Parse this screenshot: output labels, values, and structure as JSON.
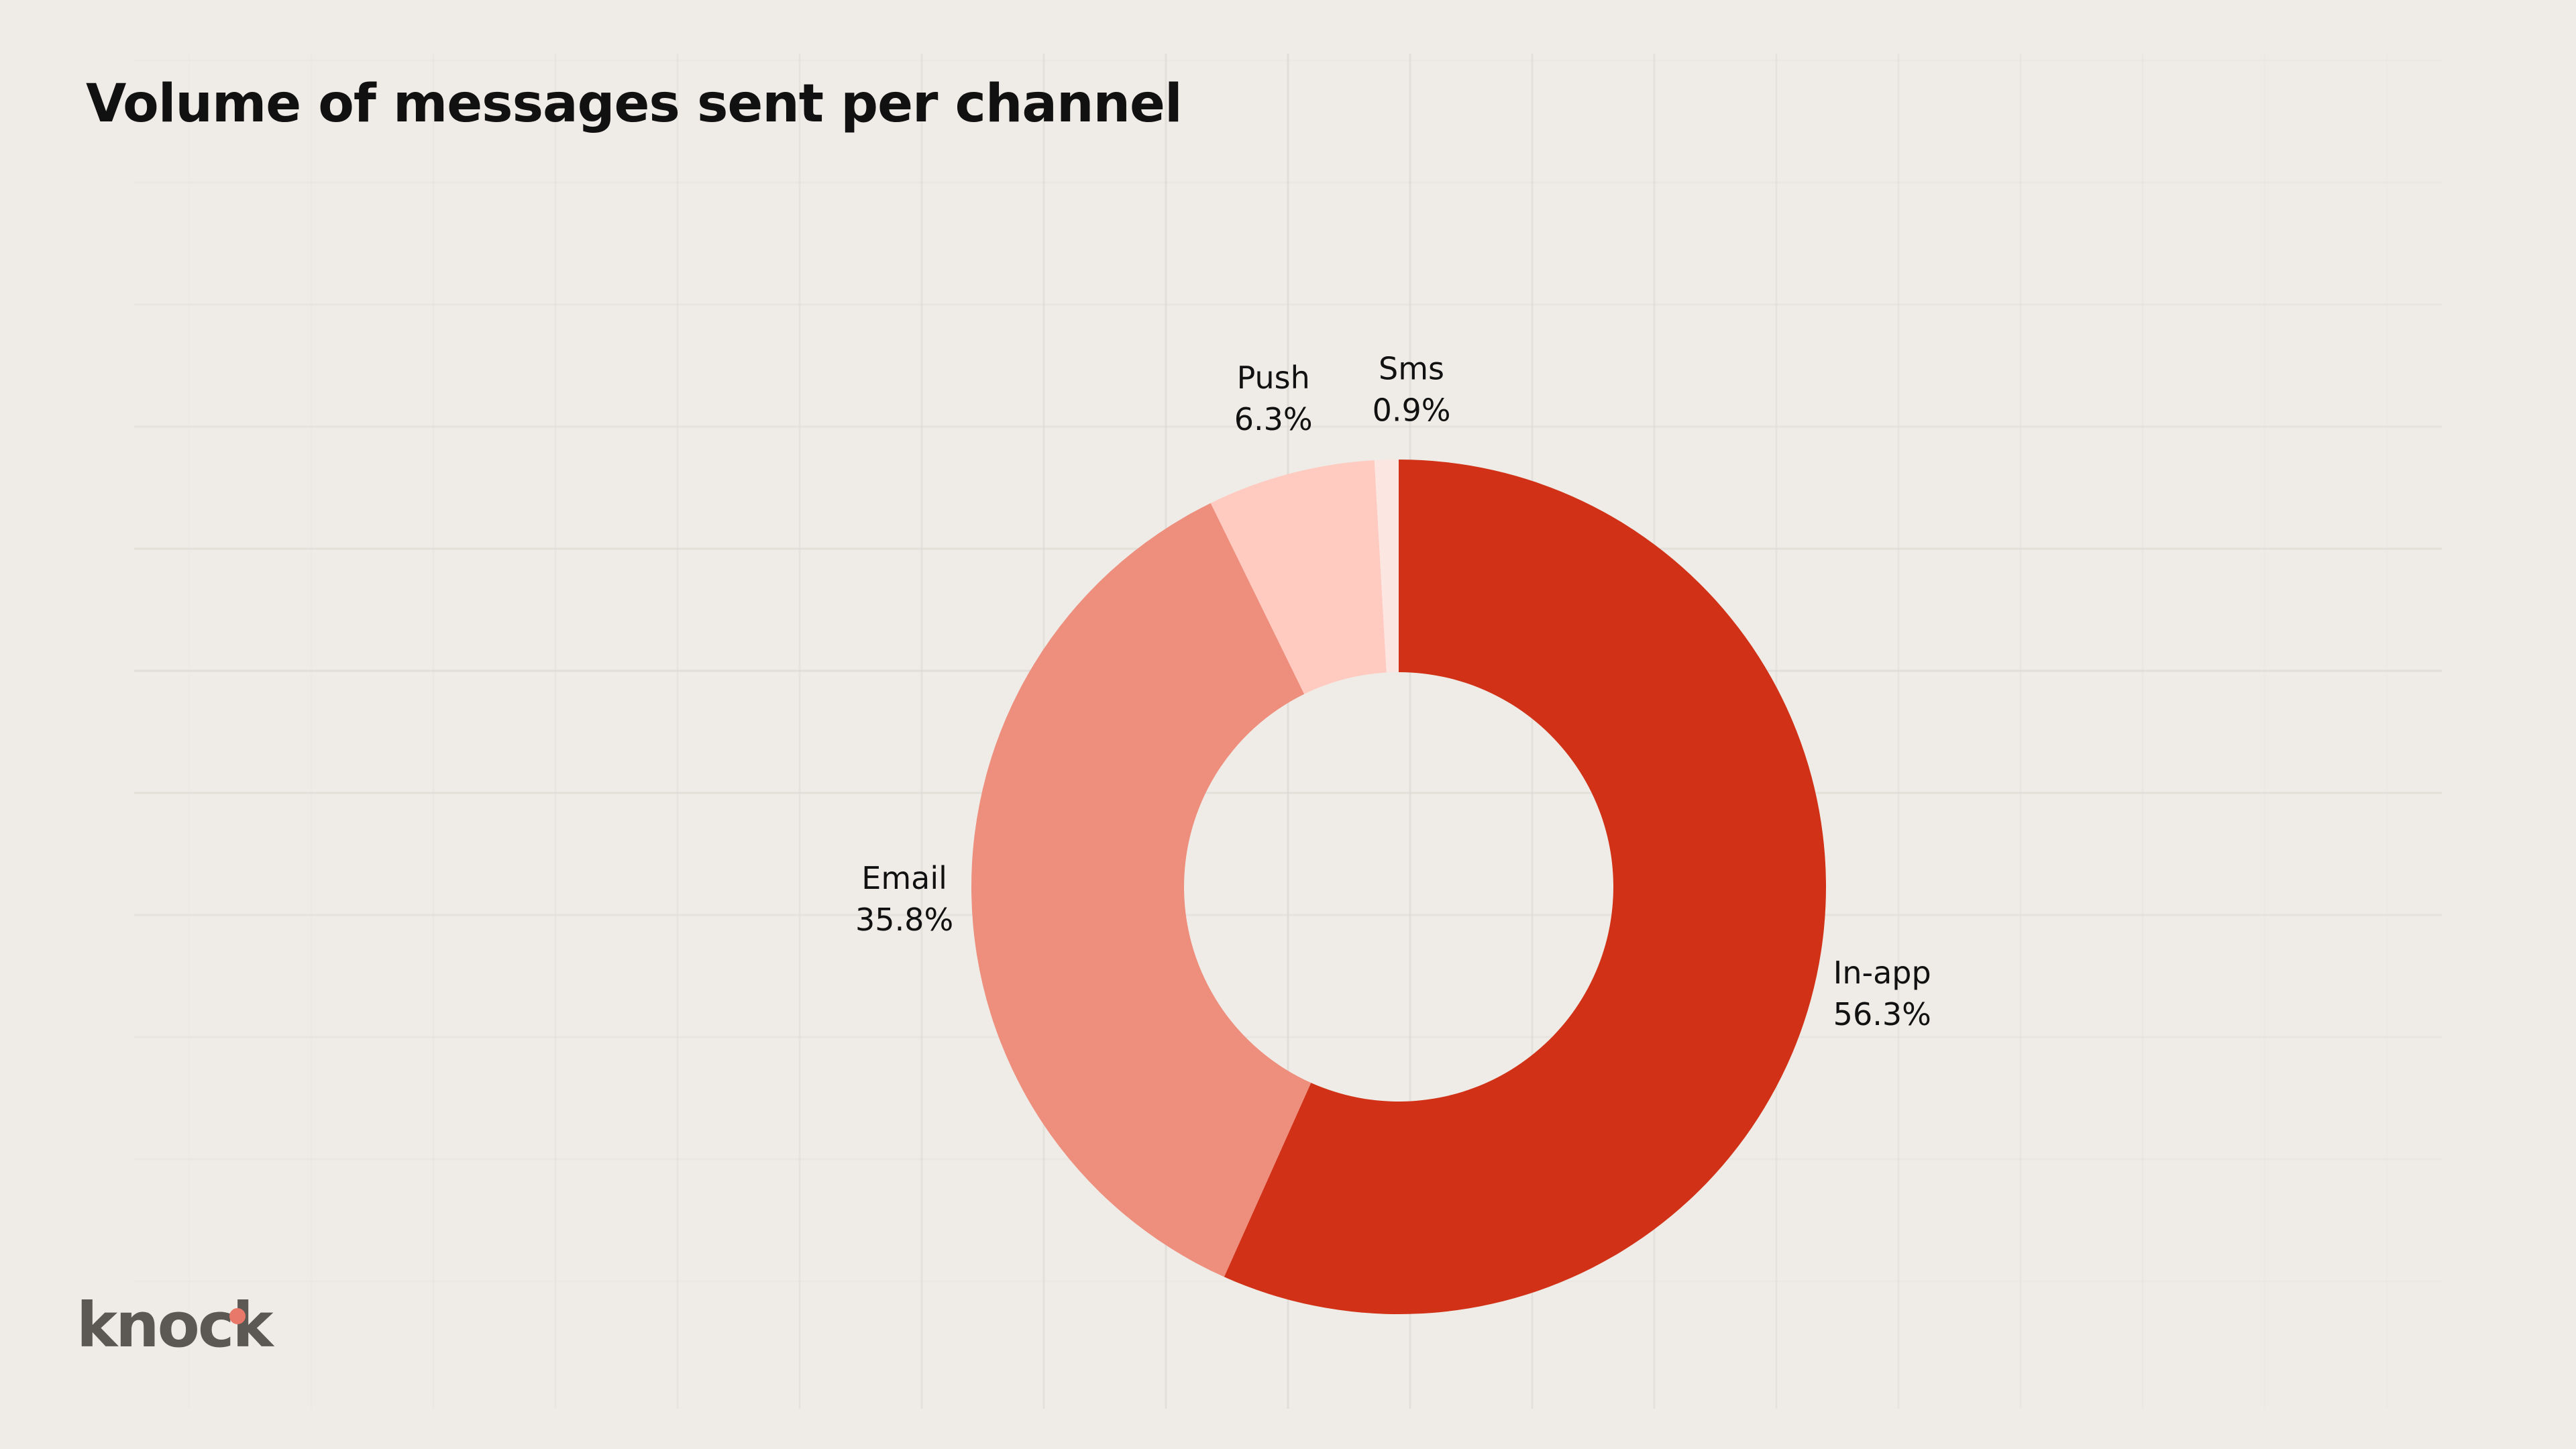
{
  "title": "Volume of messages sent per channel",
  "logo": {
    "text": "knock",
    "dot_color": "#e8796a"
  },
  "chart_data": {
    "type": "pie",
    "donut": true,
    "legend": "none",
    "slices": [
      {
        "label": "In-app",
        "value": 56.3,
        "value_label": "56.3%",
        "color": "#d13217"
      },
      {
        "label": "Email",
        "value": 35.8,
        "value_label": "35.8%",
        "color": "#ee8e7d"
      },
      {
        "label": "Push",
        "value": 6.3,
        "value_label": "6.3%",
        "color": "#ffcbc1"
      },
      {
        "label": "Sms",
        "value": 0.9,
        "value_label": "0.9%",
        "color": "#fce6e2"
      }
    ]
  }
}
